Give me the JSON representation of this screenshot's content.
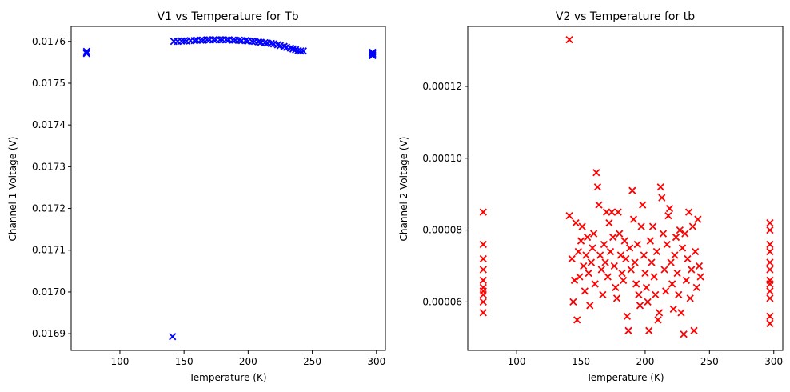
{
  "chart_data": [
    {
      "type": "scatter",
      "title": "V1 vs Temperature for Tb",
      "xlabel": "Temperature (K)",
      "ylabel": "Channel 1 Voltage (V)",
      "xlim": [
        62,
        307
      ],
      "ylim": [
        0.01686,
        0.017636
      ],
      "xticks": [
        100,
        150,
        200,
        250,
        300
      ],
      "xtick_labels": [
        "100",
        "150",
        "200",
        "250",
        "300"
      ],
      "yticks": [
        0.0169,
        0.017,
        0.0171,
        0.0172,
        0.0173,
        0.0174,
        0.0175,
        0.0176
      ],
      "ytick_labels": [
        "0.0169",
        "0.0170",
        "0.0171",
        "0.0172",
        "0.0173",
        "0.0174",
        "0.0175",
        "0.0176"
      ],
      "marker": "x",
      "color": "#0000ff",
      "points": [
        [
          74,
          0.017573
        ],
        [
          74,
          0.017576
        ],
        [
          74,
          0.017571
        ],
        [
          141,
          0.016893
        ],
        [
          297,
          0.017571
        ],
        [
          297,
          0.017568
        ],
        [
          297,
          0.017574
        ],
        [
          297,
          0.017566
        ],
        [
          142,
          0.0176
        ],
        [
          145,
          0.0176
        ],
        [
          148,
          0.017601
        ],
        [
          150,
          0.017601
        ],
        [
          152,
          0.017601
        ],
        [
          155,
          0.017602
        ],
        [
          158,
          0.017602
        ],
        [
          160,
          0.017603
        ],
        [
          163,
          0.017603
        ],
        [
          165,
          0.017603
        ],
        [
          168,
          0.017604
        ],
        [
          170,
          0.017604
        ],
        [
          173,
          0.017604
        ],
        [
          175,
          0.017604
        ],
        [
          178,
          0.017604
        ],
        [
          180,
          0.017604
        ],
        [
          183,
          0.017604
        ],
        [
          185,
          0.017604
        ],
        [
          188,
          0.017603
        ],
        [
          190,
          0.017603
        ],
        [
          193,
          0.017603
        ],
        [
          195,
          0.017602
        ],
        [
          198,
          0.017602
        ],
        [
          200,
          0.017601
        ],
        [
          203,
          0.0176
        ],
        [
          205,
          0.0176
        ],
        [
          208,
          0.017599
        ],
        [
          210,
          0.017598
        ],
        [
          213,
          0.017597
        ],
        [
          215,
          0.017596
        ],
        [
          218,
          0.017595
        ],
        [
          220,
          0.017594
        ],
        [
          223,
          0.017592
        ],
        [
          225,
          0.01759
        ],
        [
          228,
          0.017588
        ],
        [
          230,
          0.017586
        ],
        [
          233,
          0.017584
        ],
        [
          235,
          0.017582
        ],
        [
          237,
          0.01758
        ],
        [
          239,
          0.017578
        ],
        [
          241,
          0.017577
        ],
        [
          243,
          0.017577
        ]
      ]
    },
    {
      "type": "scatter",
      "title": "V2 vs Temperature for tb",
      "xlabel": "Temperature (K)",
      "ylabel": "Channel 2 Voltage (V)",
      "xlim": [
        62,
        307
      ],
      "ylim": [
        4.65e-05,
        0.0001367
      ],
      "xticks": [
        100,
        150,
        200,
        250,
        300
      ],
      "xtick_labels": [
        "100",
        "150",
        "200",
        "250",
        "300"
      ],
      "yticks": [
        6e-05,
        8e-05,
        0.0001,
        0.00012
      ],
      "ytick_labels": [
        "0.00006",
        "0.00008",
        "0.00010",
        "0.00012"
      ],
      "marker": "x",
      "color": "#ff0000",
      "points": [
        [
          74,
          8.5e-05
        ],
        [
          74,
          7.6e-05
        ],
        [
          74,
          7.2e-05
        ],
        [
          74,
          6.9e-05
        ],
        [
          74,
          6.6e-05
        ],
        [
          74,
          6.4e-05
        ],
        [
          74,
          6.3e-05
        ],
        [
          74,
          6.2e-05
        ],
        [
          74,
          6e-05
        ],
        [
          74,
          5.7e-05
        ],
        [
          141,
          0.000133
        ],
        [
          141,
          8.4e-05
        ],
        [
          143,
          7.2e-05
        ],
        [
          144,
          6e-05
        ],
        [
          145,
          6.6e-05
        ],
        [
          146,
          8.2e-05
        ],
        [
          147,
          5.5e-05
        ],
        [
          148,
          7.4e-05
        ],
        [
          149,
          6.7e-05
        ],
        [
          150,
          7.7e-05
        ],
        [
          151,
          8.1e-05
        ],
        [
          152,
          7e-05
        ],
        [
          153,
          6.3e-05
        ],
        [
          154,
          7.3e-05
        ],
        [
          155,
          7.8e-05
        ],
        [
          156,
          6.8e-05
        ],
        [
          157,
          5.9e-05
        ],
        [
          158,
          7.1e-05
        ],
        [
          159,
          7.5e-05
        ],
        [
          160,
          7.9e-05
        ],
        [
          161,
          6.5e-05
        ],
        [
          162,
          9.6e-05
        ],
        [
          163,
          9.2e-05
        ],
        [
          164,
          8.7e-05
        ],
        [
          165,
          7.3e-05
        ],
        [
          166,
          6.9e-05
        ],
        [
          167,
          6.2e-05
        ],
        [
          168,
          7.6e-05
        ],
        [
          169,
          7.1e-05
        ],
        [
          170,
          8.5e-05
        ],
        [
          171,
          6.7e-05
        ],
        [
          172,
          8.2e-05
        ],
        [
          173,
          7.4e-05
        ],
        [
          174,
          8.5e-05
        ],
        [
          175,
          7.8e-05
        ],
        [
          176,
          7e-05
        ],
        [
          177,
          6.4e-05
        ],
        [
          178,
          6.1e-05
        ],
        [
          179,
          8.5e-05
        ],
        [
          180,
          7.9e-05
        ],
        [
          181,
          7.3e-05
        ],
        [
          182,
          6.8e-05
        ],
        [
          183,
          6.6e-05
        ],
        [
          184,
          7.7e-05
        ],
        [
          185,
          7.2e-05
        ],
        [
          186,
          5.6e-05
        ],
        [
          187,
          5.2e-05
        ],
        [
          188,
          7.5e-05
        ],
        [
          189,
          6.9e-05
        ],
        [
          190,
          9.1e-05
        ],
        [
          191,
          8.3e-05
        ],
        [
          192,
          7.1e-05
        ],
        [
          193,
          6.5e-05
        ],
        [
          194,
          7.6e-05
        ],
        [
          195,
          6.2e-05
        ],
        [
          196,
          5.9e-05
        ],
        [
          197,
          8.1e-05
        ],
        [
          198,
          8.7e-05
        ],
        [
          199,
          7.3e-05
        ],
        [
          200,
          6.8e-05
        ],
        [
          201,
          6.4e-05
        ],
        [
          202,
          6e-05
        ],
        [
          203,
          5.2e-05
        ],
        [
          204,
          7.7e-05
        ],
        [
          205,
          7.1e-05
        ],
        [
          206,
          8.1e-05
        ],
        [
          207,
          6.7e-05
        ],
        [
          208,
          6.2e-05
        ],
        [
          209,
          7.4e-05
        ],
        [
          210,
          5.5e-05
        ],
        [
          211,
          5.7e-05
        ],
        [
          212,
          9.2e-05
        ],
        [
          213,
          8.9e-05
        ],
        [
          214,
          7.9e-05
        ],
        [
          215,
          6.9e-05
        ],
        [
          216,
          6.3e-05
        ],
        [
          217,
          7.6e-05
        ],
        [
          218,
          8.4e-05
        ],
        [
          219,
          8.6e-05
        ],
        [
          220,
          7.1e-05
        ],
        [
          221,
          6.5e-05
        ],
        [
          222,
          5.8e-05
        ],
        [
          223,
          7.3e-05
        ],
        [
          224,
          7.8e-05
        ],
        [
          225,
          6.8e-05
        ],
        [
          226,
          6.2e-05
        ],
        [
          227,
          8e-05
        ],
        [
          228,
          5.7e-05
        ],
        [
          229,
          7.5e-05
        ],
        [
          230,
          5.1e-05
        ],
        [
          231,
          7.9e-05
        ],
        [
          232,
          6.6e-05
        ],
        [
          233,
          7.2e-05
        ],
        [
          234,
          8.5e-05
        ],
        [
          235,
          6.1e-05
        ],
        [
          236,
          6.9e-05
        ],
        [
          237,
          8.1e-05
        ],
        [
          238,
          5.2e-05
        ],
        [
          239,
          7.4e-05
        ],
        [
          240,
          6.4e-05
        ],
        [
          241,
          8.3e-05
        ],
        [
          242,
          7e-05
        ],
        [
          243,
          6.7e-05
        ],
        [
          297,
          8.2e-05
        ],
        [
          297,
          8e-05
        ],
        [
          297,
          7.6e-05
        ],
        [
          297,
          7.4e-05
        ],
        [
          297,
          7.1e-05
        ],
        [
          297,
          6.9e-05
        ],
        [
          297,
          6.6e-05
        ],
        [
          297,
          6.5e-05
        ],
        [
          297,
          6.3e-05
        ],
        [
          297,
          6.1e-05
        ],
        [
          297,
          5.6e-05
        ],
        [
          297,
          5.4e-05
        ]
      ]
    }
  ]
}
